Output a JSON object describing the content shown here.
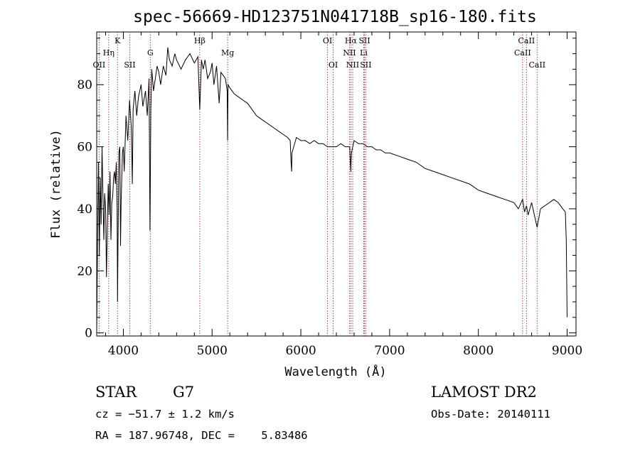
{
  "chart_data": {
    "type": "line",
    "title": "spec-56669-HD123751N041718B_sp16-180.fits",
    "xlabel": "Wavelength (Å)",
    "ylabel": "Flux (relative)",
    "xlim": [
      3700,
      9100
    ],
    "ylim": [
      -1,
      97
    ],
    "x_ticks": [
      4000,
      5000,
      6000,
      7000,
      8000,
      9000
    ],
    "y_ticks": [
      0,
      20,
      40,
      60,
      80
    ],
    "grid": false,
    "series": [
      {
        "x": [
          3700,
          3710,
          3720,
          3730,
          3740,
          3750,
          3760,
          3770,
          3780,
          3790,
          3800,
          3810,
          3820,
          3830,
          3840,
          3850,
          3860,
          3870,
          3880,
          3890,
          3900,
          3910,
          3920,
          3930,
          3935,
          3940,
          3950,
          3960,
          3968,
          3975,
          3990,
          4000,
          4010,
          4030,
          4050,
          4070,
          4090,
          4101,
          4110,
          4130,
          4150,
          4170,
          4200,
          4220,
          4250,
          4270,
          4290,
          4300,
          4310,
          4320,
          4340,
          4360,
          4380,
          4400,
          4420,
          4450,
          4480,
          4500,
          4520,
          4550,
          4580,
          4600,
          4650,
          4700,
          4750,
          4800,
          4840,
          4861,
          4880,
          4900,
          4920,
          4950,
          4980,
          5000,
          5020,
          5050,
          5080,
          5100,
          5150,
          5170,
          5175,
          5180,
          5200,
          5250,
          5300,
          5350,
          5400,
          5450,
          5500,
          5550,
          5600,
          5650,
          5700,
          5750,
          5800,
          5850,
          5880,
          5890,
          5896,
          5900,
          5950,
          6000,
          6050,
          6100,
          6150,
          6200,
          6250,
          6300,
          6350,
          6400,
          6450,
          6500,
          6550,
          6563,
          6570,
          6600,
          6650,
          6700,
          6750,
          6800,
          6850,
          6900,
          6950,
          7000,
          7100,
          7200,
          7300,
          7400,
          7500,
          7600,
          7700,
          7800,
          7900,
          8000,
          8100,
          8200,
          8300,
          8400,
          8450,
          8498,
          8520,
          8542,
          8560,
          8600,
          8662,
          8700,
          8750,
          8800,
          8850,
          8900,
          8950,
          8980,
          8990,
          9000
        ],
        "y": [
          0,
          30,
          55,
          25,
          50,
          35,
          60,
          45,
          30,
          45,
          40,
          18,
          35,
          48,
          38,
          52,
          30,
          42,
          44,
          50,
          52,
          48,
          55,
          40,
          10,
          30,
          58,
          60,
          28,
          42,
          58,
          60,
          52,
          70,
          62,
          75,
          66,
          48,
          72,
          78,
          70,
          76,
          80,
          73,
          78,
          70,
          82,
          33,
          72,
          85,
          78,
          82,
          86,
          84,
          80,
          86,
          83,
          92,
          88,
          86,
          90,
          88,
          85,
          88,
          90,
          87,
          89,
          72,
          88,
          85,
          88,
          82,
          84,
          87,
          80,
          86,
          74,
          84,
          82,
          78,
          62,
          80,
          79,
          77,
          76,
          75,
          74,
          72,
          70,
          69,
          68,
          67,
          66,
          65,
          64,
          63,
          62,
          55,
          52,
          58,
          63,
          62,
          62,
          61,
          62,
          61,
          61,
          60,
          60,
          60,
          61,
          60,
          60,
          52,
          58,
          62,
          61,
          61,
          60,
          60,
          59,
          59,
          58,
          58,
          57,
          56,
          55,
          53,
          52,
          51,
          50,
          49,
          48,
          46,
          45,
          44,
          43,
          42,
          40,
          43,
          39,
          41,
          38,
          42,
          34,
          40,
          41,
          42,
          43,
          42,
          40,
          39,
          30,
          5
        ]
      }
    ],
    "annotations": [
      {
        "label": "OII",
        "x": 3727,
        "row": 3
      },
      {
        "label": "Hη",
        "x": 3835,
        "row": 2
      },
      {
        "label": "K",
        "x": 3934,
        "row": 1
      },
      {
        "label": "SII",
        "x": 4072,
        "row": 3
      },
      {
        "label": "G",
        "x": 4304,
        "row": 2
      },
      {
        "label": "Hβ",
        "x": 4861,
        "row": 1
      },
      {
        "label": "Mg",
        "x": 5175,
        "row": 2
      },
      {
        "label": "OI",
        "x": 6300,
        "row": 1
      },
      {
        "label": "OI",
        "x": 6364,
        "row": 3
      },
      {
        "label": "Hα",
        "x": 6563,
        "row": 1
      },
      {
        "label": "NII",
        "x": 6548,
        "row": 2
      },
      {
        "label": "NII",
        "x": 6584,
        "row": 3
      },
      {
        "label": "SII",
        "x": 6717,
        "row": 1
      },
      {
        "label": "Li",
        "x": 6708,
        "row": 2
      },
      {
        "label": "SII",
        "x": 6731,
        "row": 3
      },
      {
        "label": "CaII",
        "x": 8542,
        "row": 1
      },
      {
        "label": "CaII",
        "x": 8498,
        "row": 2
      },
      {
        "label": "CaII",
        "x": 8662,
        "row": 3
      }
    ]
  },
  "info": {
    "object_type": "STAR",
    "subclass": "G7",
    "survey": "LAMOST DR2",
    "cz": "cz = −51.7 ± 1.2 km/s",
    "obs_date": "Obs-Date: 20140111",
    "coords": "RA = 187.96748, DEC =    5.83486"
  }
}
